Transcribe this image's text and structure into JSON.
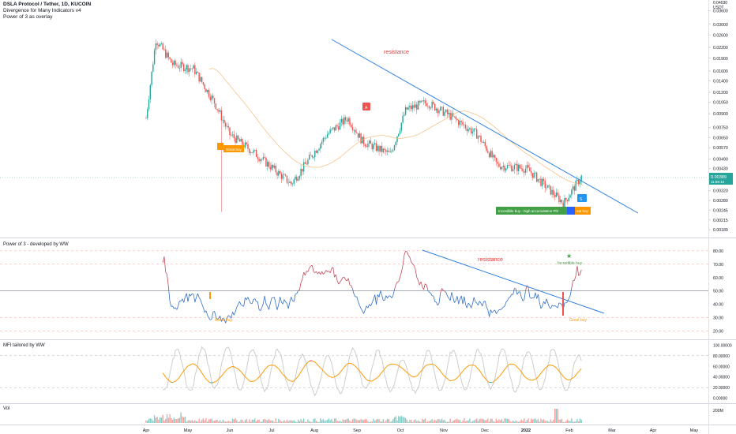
{
  "header": {
    "symbol_line": "DSLA Protocol / Tether, 1D, KUCOIN",
    "indicator_1": "Divergence for Many Indicators v4",
    "indicator_2": "Power of 3 as overlay"
  },
  "currency_label": "USDT",
  "last_price": "0.00389",
  "countdown": "11:58:10",
  "colors": {
    "up": "#26a69a",
    "down": "#ef5350",
    "trendline": "#2f7fe0",
    "ma": "#f5b26b",
    "orange_badge": "#ff9800",
    "green_badge": "#43a047",
    "blue_badge": "#2962ff",
    "resistance_text": "#e53935",
    "mfi_gray": "#c8c8c8"
  },
  "panes": {
    "price": {
      "annotation": "resistance",
      "labels": {
        "great_buy": "Great buy",
        "incredible_buy": "Incredible buy - high accumulation Ph!",
        "great_buy_2": "eat buy"
      },
      "icons": [
        "badge-orange",
        "badge-red-a",
        "badge-blue-s",
        "badge-blue-b"
      ]
    },
    "power3": {
      "title": "Power of 3 - developed by WW",
      "annotation": "resistance",
      "label_great_buy_1": "Great buy",
      "label_great_buy_2": "Great buy",
      "label_incredible": "Incredible buy",
      "star": "★"
    },
    "mfi": {
      "title": "MFI tailored by WW"
    },
    "vol": {
      "title": "Vol"
    }
  },
  "time_axis": [
    "Apr",
    "May",
    "Jun",
    "Jul",
    "Aug",
    "Sep",
    "Oct",
    "Nov",
    "Dec",
    "2022",
    "Feb",
    "Mar",
    "Apr",
    "May"
  ],
  "chart_data": [
    {
      "type": "candlestick",
      "name": "price",
      "scale": "log",
      "y_ticks": [
        "0.03600",
        "0.03000",
        "0.02600",
        "0.02200",
        "0.01900",
        "0.01600",
        "0.01400",
        "0.01200",
        "0.01050",
        "0.00900",
        "0.00750",
        "0.00650",
        "0.00570",
        "0.00490",
        "0.00430",
        "0.00370",
        "0.00320",
        "0.00280",
        "0.00245",
        "0.00215",
        "0.00189"
      ],
      "top_tick": "0.04030",
      "ylim": [
        0.00189,
        0.0403
      ],
      "key_points": [
        {
          "x": "Apr 01",
          "close": 0.0085
        },
        {
          "x": "Apr 08",
          "close": 0.0245
        },
        {
          "x": "Apr 20",
          "close": 0.0175
        },
        {
          "x": "May 05",
          "close": 0.0165
        },
        {
          "x": "May 20",
          "close": 0.0105
        },
        {
          "x": "Jun 01",
          "close": 0.0068
        },
        {
          "x": "Jun 20",
          "close": 0.0052
        },
        {
          "x": "Jul 15",
          "close": 0.0035
        },
        {
          "x": "Aug 10",
          "close": 0.0068
        },
        {
          "x": "Aug 25",
          "close": 0.0085
        },
        {
          "x": "Sep 05",
          "close": 0.0062
        },
        {
          "x": "Sep 25",
          "close": 0.0052
        },
        {
          "x": "Oct 05",
          "close": 0.0095
        },
        {
          "x": "Oct 20",
          "close": 0.0105
        },
        {
          "x": "Nov 05",
          "close": 0.0088
        },
        {
          "x": "Nov 25",
          "close": 0.0068
        },
        {
          "x": "Dec 10",
          "close": 0.0045
        },
        {
          "x": "Dec 31",
          "close": 0.0043
        },
        {
          "x": "Jan 15",
          "close": 0.0034
        },
        {
          "x": "Jan 28",
          "close": 0.0027
        },
        {
          "x": "Feb 10",
          "close": 0.0039
        }
      ]
    },
    {
      "type": "line",
      "name": "Power of 3",
      "y_ticks": [
        "80.00",
        "70.00",
        "60.00",
        "50.00",
        "40.00",
        "30.00",
        "20.00"
      ],
      "ylim": [
        15,
        87
      ]
    },
    {
      "type": "line",
      "name": "MFI",
      "y_ticks": [
        "100.00000",
        "80.00000",
        "60.00000",
        "40.00000",
        "20.00000",
        "0.00000"
      ],
      "ylim": [
        -5,
        105
      ]
    },
    {
      "type": "bar",
      "name": "Vol",
      "y_ticks": [
        "200M"
      ]
    }
  ]
}
